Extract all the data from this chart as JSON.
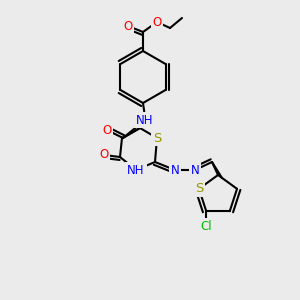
{
  "bg_color": "#ebebeb",
  "bond_color": "#000000",
  "atom_colors": {
    "O": "#ff0000",
    "N": "#0000ff",
    "S": "#999900",
    "Cl": "#00bb00",
    "C": "#000000",
    "H": "#000000"
  },
  "line_width": 1.5,
  "font_size": 8.5
}
